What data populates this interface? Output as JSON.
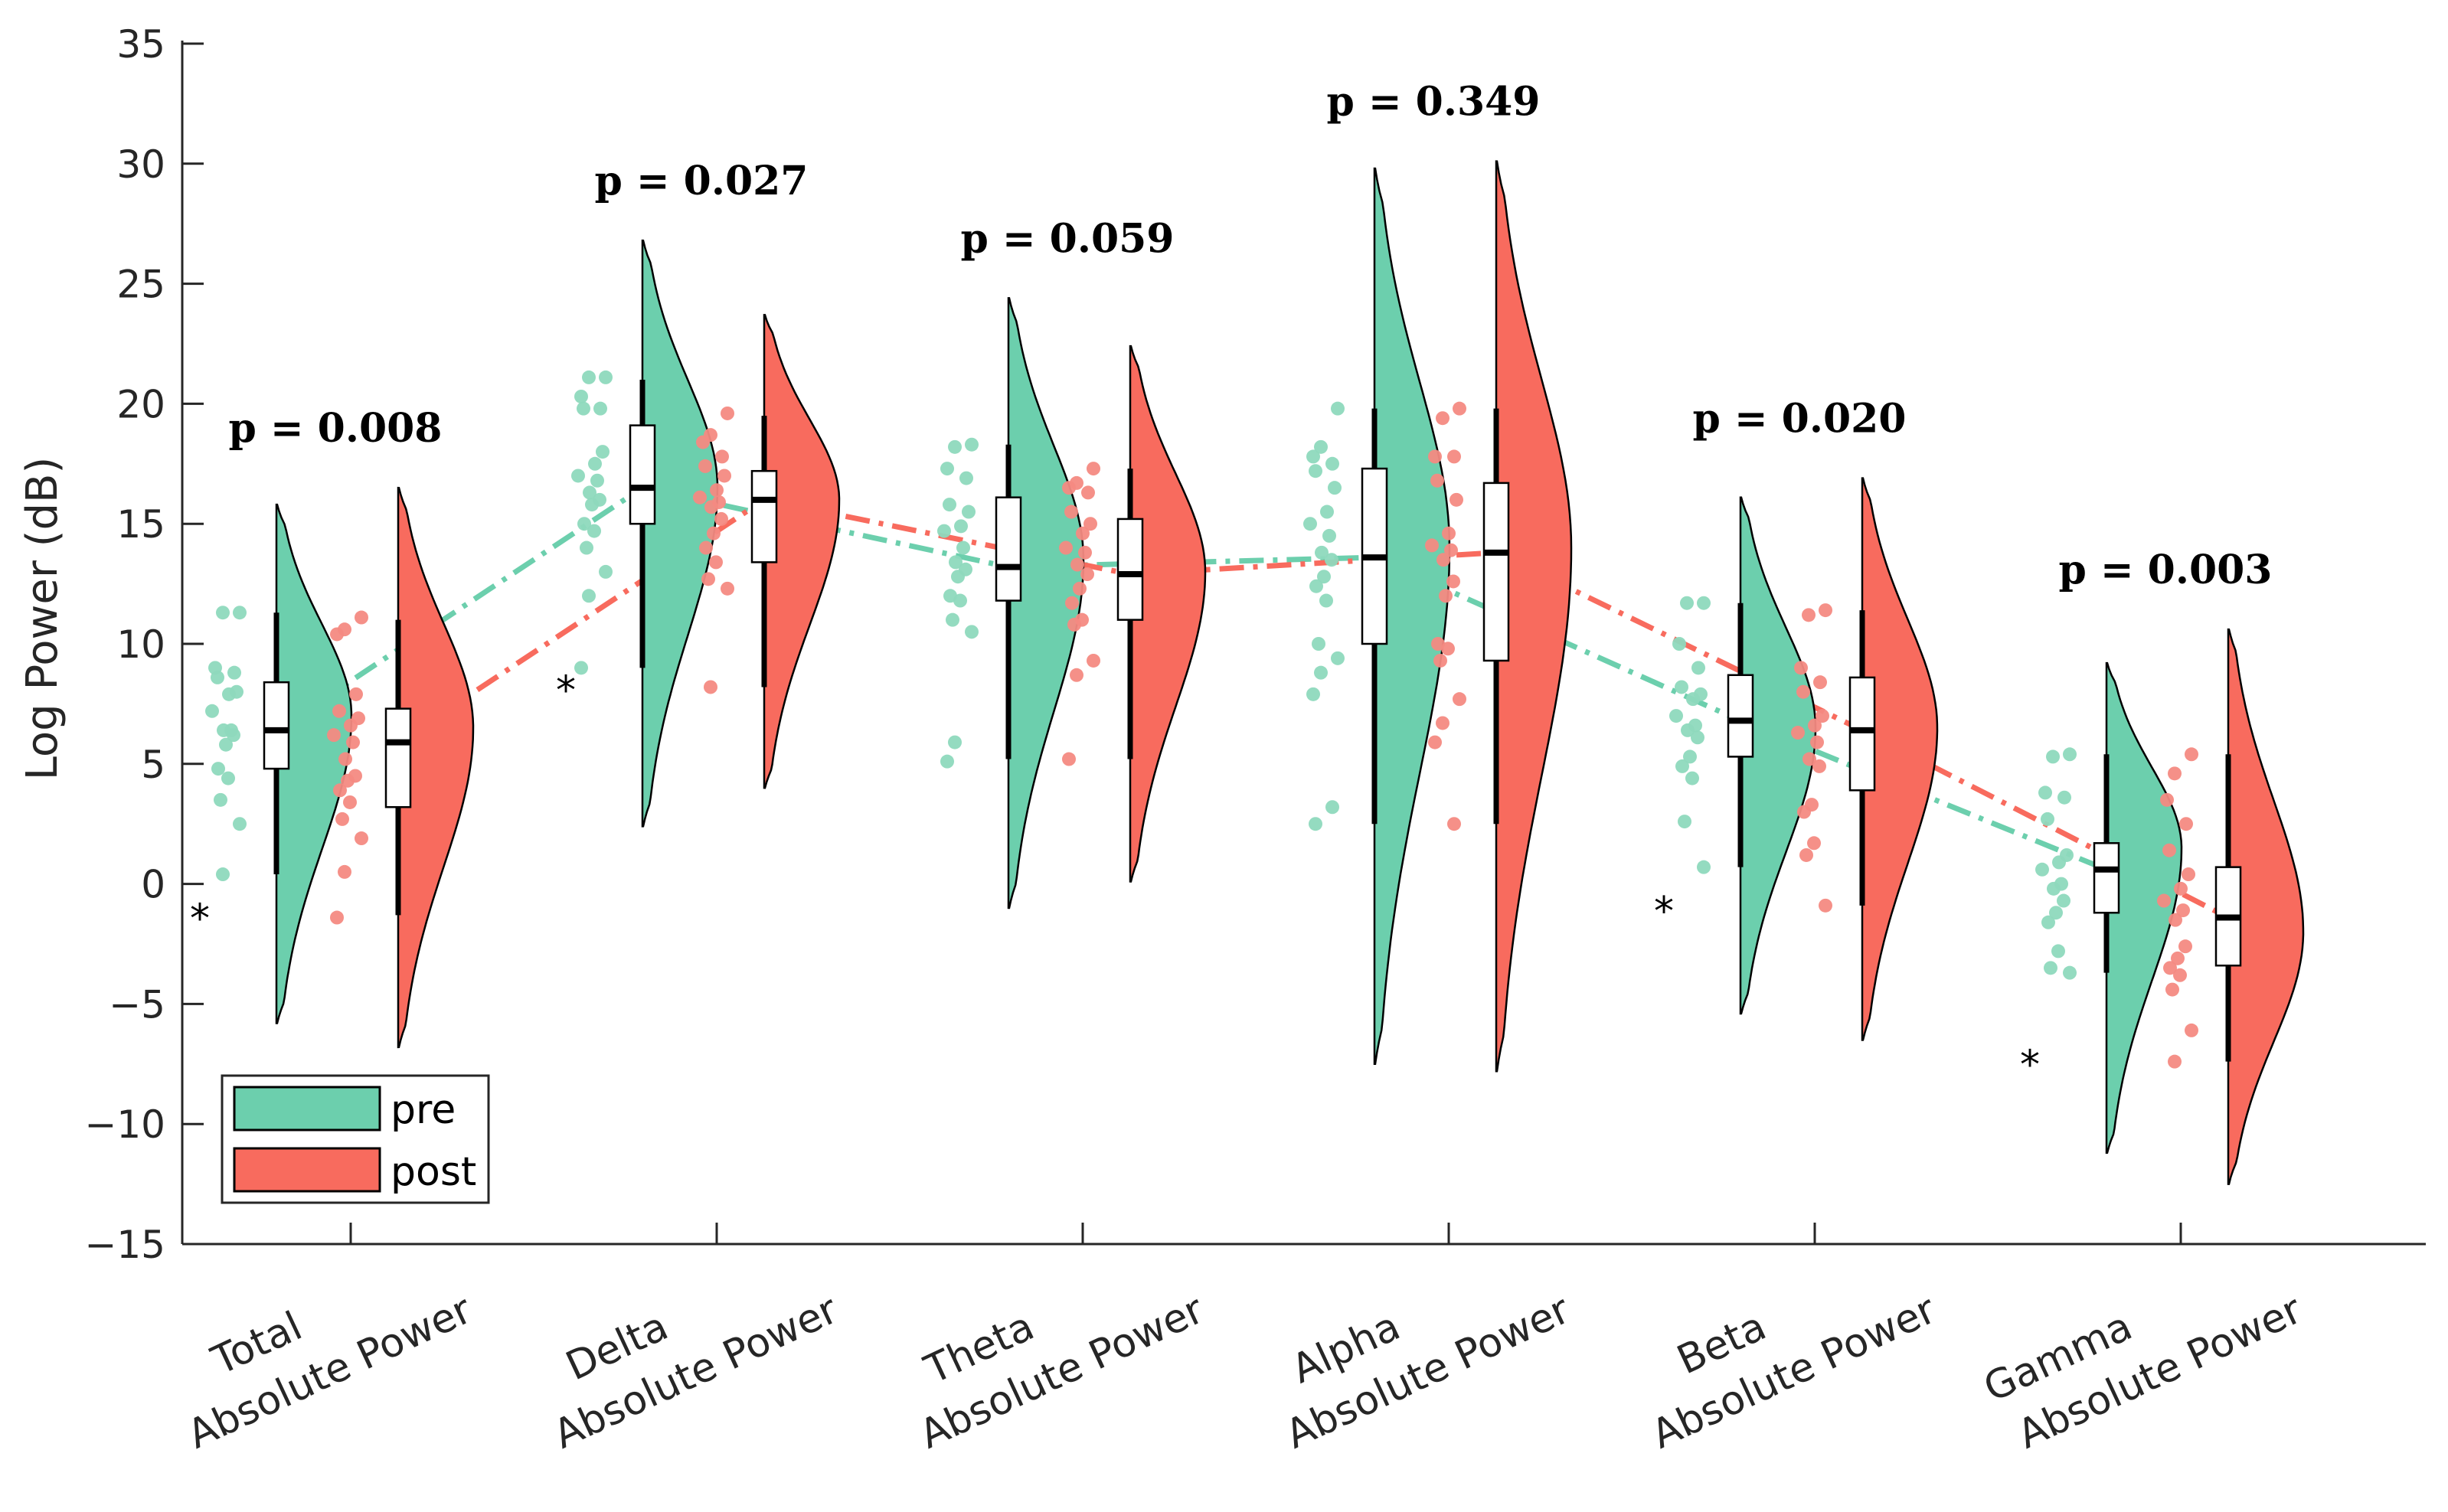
{
  "colors": {
    "pre": "#6ccfad",
    "post": "#f86b5e",
    "pre_points": "#8ed9bd",
    "post_points": "#f48a82",
    "axis": "#262626"
  },
  "chart_data": {
    "type": "raincloud",
    "title": "",
    "xlabel": "",
    "ylabel": "Log Power (dB)",
    "ylim": [
      -15,
      35
    ],
    "yticks": [
      35,
      30,
      25,
      20,
      15,
      10,
      5,
      0,
      -5,
      -10,
      -15
    ],
    "ytick_labels": [
      "35",
      "30",
      "25",
      "20",
      "15",
      "10",
      "5",
      "0",
      "−5",
      "−10",
      "−15"
    ],
    "legend": {
      "position": "bottom-left",
      "entries": [
        "pre",
        "post"
      ]
    },
    "categories": [
      {
        "line1": "Total",
        "line2": "Absolute Power",
        "p": "p = 0.008"
      },
      {
        "line1": "Delta",
        "line2": "Absolute Power",
        "p": "p = 0.027"
      },
      {
        "line1": "Theta",
        "line2": "Absolute Power",
        "p": "p = 0.059"
      },
      {
        "line1": "Alpha",
        "line2": "Absolute Power",
        "p": "p = 0.349"
      },
      {
        "line1": "Beta",
        "line2": "Absolute Power",
        "p": "p = 0.020"
      },
      {
        "line1": "Gamma",
        "line2": "Absolute Power",
        "p": "p = 0.003"
      }
    ],
    "series": [
      {
        "name": "pre",
        "groups": [
          {
            "density_range": [
              -5.8,
              15.8
            ],
            "density_peak": 7,
            "box": {
              "q1": 4.8,
              "median": 6.4,
              "q3": 8.4,
              "whisker_low": 0.4,
              "whisker_high": 11.3
            },
            "points": [
              11.3,
              11.3,
              9.0,
              8.8,
              8.6,
              8.0,
              7.9,
              7.2,
              6.4,
              6.4,
              6.2,
              5.8,
              4.8,
              4.4,
              3.5,
              2.5,
              0.4
            ],
            "outliers": [
              -1.3
            ]
          },
          {
            "density_range": [
              2.4,
              26.8
            ],
            "density_peak": 16.5,
            "box": {
              "q1": 15.0,
              "median": 16.5,
              "q3": 19.1,
              "whisker_low": 9.0,
              "whisker_high": 21.0
            },
            "points": [
              21.1,
              21.1,
              20.3,
              19.8,
              19.8,
              18.0,
              17.5,
              17.0,
              16.8,
              16.3,
              16.0,
              15.8,
              15.0,
              14.7,
              14.0,
              13.0,
              12.0,
              9.0
            ],
            "outliers": [
              8.2
            ]
          },
          {
            "density_range": [
              -1.0,
              24.4
            ],
            "density_peak": 13.5,
            "box": {
              "q1": 11.8,
              "median": 13.2,
              "q3": 16.1,
              "whisker_low": 5.2,
              "whisker_high": 18.3
            },
            "points": [
              18.3,
              18.2,
              17.3,
              16.9,
              15.8,
              15.5,
              14.9,
              14.7,
              14.0,
              13.4,
              13.1,
              12.8,
              12.0,
              11.8,
              11.0,
              10.5,
              5.9,
              5.1
            ],
            "outliers": []
          },
          {
            "density_range": [
              -7.5,
              29.8
            ],
            "density_peak": 14,
            "box": {
              "q1": 10.0,
              "median": 13.6,
              "q3": 17.3,
              "whisker_low": 2.5,
              "whisker_high": 19.8
            },
            "points": [
              19.8,
              18.2,
              17.8,
              17.5,
              17.2,
              16.5,
              15.5,
              15.0,
              14.5,
              13.8,
              13.5,
              12.8,
              12.4,
              11.8,
              10.0,
              9.4,
              8.8,
              7.9,
              3.2,
              2.5
            ],
            "outliers": []
          },
          {
            "density_range": [
              -5.4,
              16.1
            ],
            "density_peak": 6.5,
            "box": {
              "q1": 5.3,
              "median": 6.8,
              "q3": 8.7,
              "whisker_low": 0.7,
              "whisker_high": 11.7
            },
            "points": [
              11.7,
              11.7,
              10.0,
              9.0,
              8.2,
              7.9,
              7.7,
              7.0,
              6.6,
              6.4,
              6.1,
              5.3,
              4.9,
              4.4,
              2.6,
              0.7
            ],
            "outliers": [
              -1.0
            ]
          },
          {
            "density_range": [
              -11.2,
              9.2
            ],
            "density_peak": 1.5,
            "box": {
              "q1": -1.2,
              "median": 0.6,
              "q3": 1.7,
              "whisker_low": -3.7,
              "whisker_high": 5.4
            },
            "points": [
              5.4,
              5.3,
              3.8,
              3.6,
              2.7,
              1.2,
              0.9,
              0.6,
              0.0,
              -0.2,
              -0.7,
              -1.2,
              -1.6,
              -2.8,
              -3.5,
              -3.7
            ],
            "outliers": [
              -7.4
            ]
          }
        ]
      },
      {
        "name": "post",
        "groups": [
          {
            "density_range": [
              -6.8,
              16.5
            ],
            "density_peak": 6.5,
            "box": {
              "q1": 3.2,
              "median": 5.9,
              "q3": 7.3,
              "whisker_low": -1.3,
              "whisker_high": 11.0
            },
            "points": [
              11.1,
              10.6,
              10.4,
              7.9,
              7.2,
              6.9,
              6.6,
              6.2,
              5.9,
              5.2,
              4.5,
              4.3,
              3.9,
              3.4,
              2.7,
              1.9,
              0.5,
              -1.4
            ],
            "outliers": []
          },
          {
            "density_range": [
              4.0,
              23.7
            ],
            "density_peak": 16,
            "box": {
              "q1": 13.4,
              "median": 16.0,
              "q3": 17.2,
              "whisker_low": 8.2,
              "whisker_high": 19.5
            },
            "points": [
              19.6,
              18.7,
              18.4,
              17.8,
              17.4,
              17.0,
              16.4,
              16.1,
              15.9,
              15.7,
              15.2,
              14.6,
              14.0,
              13.4,
              12.7,
              12.3,
              8.2
            ],
            "outliers": []
          },
          {
            "density_range": [
              0.1,
              22.4
            ],
            "density_peak": 13,
            "box": {
              "q1": 11.0,
              "median": 12.9,
              "q3": 15.2,
              "whisker_low": 5.2,
              "whisker_high": 17.3
            },
            "points": [
              17.3,
              16.7,
              16.5,
              16.3,
              15.5,
              15.0,
              14.6,
              14.0,
              13.8,
              13.3,
              12.9,
              12.3,
              11.7,
              11.0,
              10.8,
              9.3,
              8.7,
              5.2
            ],
            "outliers": []
          },
          {
            "density_range": [
              -7.8,
              30.1
            ],
            "density_peak": 14,
            "box": {
              "q1": 9.3,
              "median": 13.8,
              "q3": 16.7,
              "whisker_low": 2.5,
              "whisker_high": 19.8
            },
            "points": [
              19.8,
              19.4,
              17.8,
              17.8,
              16.8,
              16.0,
              14.6,
              14.1,
              13.9,
              13.5,
              12.6,
              12.0,
              10.0,
              9.8,
              9.3,
              7.7,
              6.7,
              5.9,
              2.5
            ],
            "outliers": []
          },
          {
            "density_range": [
              -6.5,
              16.9
            ],
            "density_peak": 6.5,
            "box": {
              "q1": 3.9,
              "median": 6.4,
              "q3": 8.6,
              "whisker_low": -0.9,
              "whisker_high": 11.4
            },
            "points": [
              11.4,
              11.2,
              9.0,
              8.4,
              8.0,
              7.0,
              6.6,
              6.3,
              5.9,
              5.2,
              4.9,
              3.3,
              3.0,
              1.7,
              1.2,
              -0.9
            ],
            "outliers": []
          },
          {
            "density_range": [
              -12.5,
              10.6
            ],
            "density_peak": -2,
            "box": {
              "q1": -3.4,
              "median": -1.4,
              "q3": 0.7,
              "whisker_low": -7.4,
              "whisker_high": 5.4
            },
            "points": [
              5.4,
              4.6,
              3.5,
              2.5,
              1.4,
              0.4,
              -0.2,
              -0.7,
              -1.1,
              -1.5,
              -2.6,
              -3.1,
              -3.5,
              -3.8,
              -4.4,
              -6.1,
              -7.4
            ],
            "outliers": []
          }
        ]
      }
    ]
  }
}
